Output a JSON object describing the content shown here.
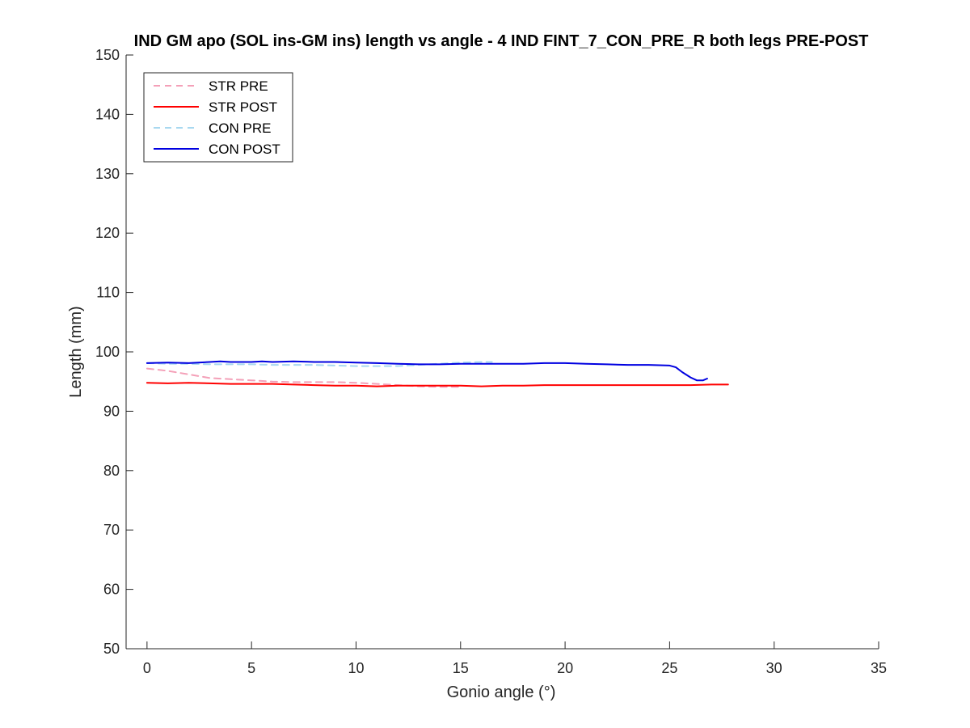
{
  "chart_data": {
    "type": "line",
    "title": "IND GM apo (SOL ins-GM ins) length vs angle - 4 IND FINT_7_CON_PRE_R both legs PRE-POST",
    "xlabel": "Gonio angle (°)",
    "ylabel": "Length (mm)",
    "xlim": [
      -1,
      35
    ],
    "ylim": [
      50,
      150
    ],
    "xticks": [
      0,
      5,
      10,
      15,
      20,
      25,
      30,
      35
    ],
    "yticks": [
      50,
      60,
      70,
      80,
      90,
      100,
      110,
      120,
      130,
      140,
      150
    ],
    "grid": false,
    "legend_position": "top-left",
    "series": [
      {
        "name": "STR PRE",
        "color": "#f4a0b8",
        "dashed": true,
        "x": [
          0,
          1,
          2,
          3,
          4,
          5,
          6,
          7,
          8,
          9,
          10,
          11,
          12,
          13,
          14,
          15
        ],
        "y": [
          97.2,
          96.8,
          96.2,
          95.6,
          95.4,
          95.2,
          95.0,
          94.9,
          94.9,
          94.9,
          94.8,
          94.6,
          94.4,
          94.2,
          94.1,
          94.1
        ]
      },
      {
        "name": "STR POST",
        "color": "#ff0000",
        "dashed": false,
        "x": [
          0,
          1,
          2,
          3,
          4,
          5,
          6,
          7,
          8,
          9,
          10,
          11,
          12,
          13,
          14,
          15,
          16,
          17,
          18,
          19,
          20,
          21,
          22,
          23,
          24,
          25,
          26,
          27,
          27.8
        ],
        "y": [
          94.8,
          94.7,
          94.8,
          94.7,
          94.6,
          94.6,
          94.6,
          94.5,
          94.4,
          94.3,
          94.3,
          94.2,
          94.3,
          94.3,
          94.3,
          94.3,
          94.2,
          94.3,
          94.3,
          94.4,
          94.4,
          94.4,
          94.4,
          94.4,
          94.4,
          94.4,
          94.4,
          94.5,
          94.5
        ]
      },
      {
        "name": "CON PRE",
        "color": "#a8d8f0",
        "dashed": true,
        "x": [
          0,
          1,
          2,
          3,
          4,
          5,
          6,
          7,
          8,
          9,
          10,
          11,
          12,
          13,
          14,
          15,
          16,
          16.5
        ],
        "y": [
          98.1,
          98.0,
          98.0,
          97.9,
          97.9,
          97.9,
          97.8,
          97.8,
          97.8,
          97.7,
          97.6,
          97.6,
          97.6,
          97.8,
          98.0,
          98.2,
          98.3,
          98.3
        ]
      },
      {
        "name": "CON POST",
        "color": "#0000e0",
        "dashed": false,
        "x": [
          0,
          1,
          2,
          3,
          3.5,
          4,
          5,
          5.5,
          6,
          7,
          8,
          9,
          10,
          11,
          12,
          13,
          14,
          15,
          16,
          17,
          18,
          19,
          20,
          21,
          22,
          23,
          24,
          25,
          25.3,
          25.6,
          26,
          26.3,
          26.6,
          26.8
        ],
        "y": [
          98.1,
          98.2,
          98.1,
          98.3,
          98.4,
          98.3,
          98.3,
          98.4,
          98.3,
          98.4,
          98.3,
          98.3,
          98.2,
          98.1,
          98.0,
          97.9,
          97.9,
          98.0,
          98.0,
          98.0,
          98.0,
          98.1,
          98.1,
          98.0,
          97.9,
          97.8,
          97.8,
          97.7,
          97.4,
          96.6,
          95.7,
          95.2,
          95.2,
          95.5
        ]
      }
    ]
  }
}
